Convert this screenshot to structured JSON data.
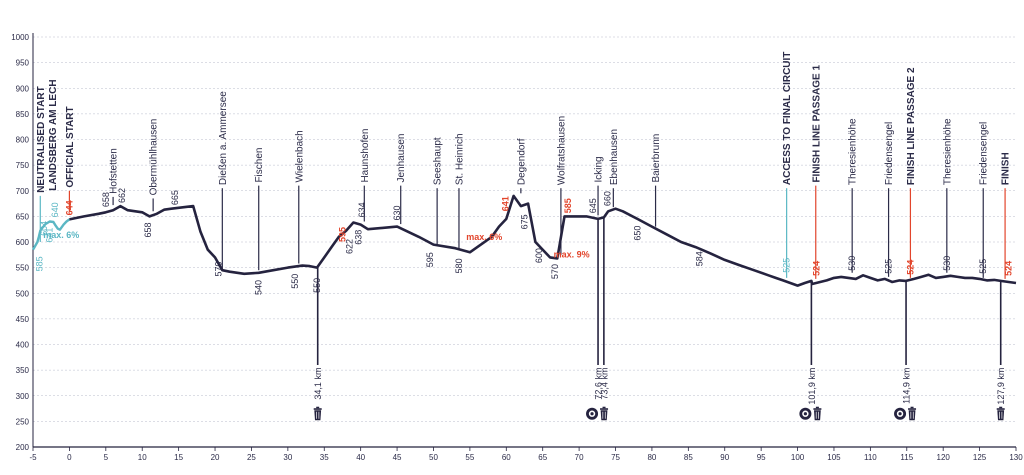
{
  "colors": {
    "profile": "#25233f",
    "teal": "#5bb7c4",
    "red": "#e2452c",
    "dark": "#2b2b48",
    "grid": "#b9bccb",
    "axis": "#25233f"
  },
  "icons": {
    "feed": "feed-zone-icon",
    "bin": "waste-bin-icon"
  },
  "chart_data": {
    "type": "area",
    "title": "",
    "xlabel": "",
    "ylabel": "",
    "xlim": [
      -5,
      130
    ],
    "ylim": [
      200,
      1000
    ],
    "x_ticks": [
      "-5",
      "0",
      "5",
      "10",
      "15",
      "20",
      "25",
      "30",
      "35",
      "40",
      "45",
      "50",
      "55",
      "60",
      "65",
      "70",
      "75",
      "80",
      "85",
      "90",
      "95",
      "100",
      "105",
      "110",
      "115",
      "120",
      "125",
      "130"
    ],
    "y_ticks": [
      "200",
      "250",
      "300",
      "350",
      "400",
      "450",
      "500",
      "550",
      "600",
      "650",
      "700",
      "750",
      "800",
      "850",
      "900",
      "950",
      "1000"
    ],
    "neutralised_profile": {
      "x": [
        -5,
        -4.8,
        -4.4,
        -4.2,
        -4.0,
        -3.7,
        -3.3,
        -2.7,
        -2.2,
        -1.9,
        -1.6,
        -1.3,
        -0.8,
        -0.4,
        0
      ],
      "y": [
        585,
        590,
        600,
        610,
        622,
        628,
        635,
        640,
        639,
        632,
        626,
        624,
        634,
        640,
        644
      ]
    },
    "profile": {
      "x": [
        0,
        2,
        4,
        5,
        6,
        7,
        8,
        10,
        11,
        12,
        13,
        14,
        17,
        18,
        19,
        20,
        21,
        22,
        24,
        26,
        28,
        30,
        32,
        33,
        34,
        35,
        36,
        37,
        38,
        39,
        40,
        41,
        45,
        48,
        50,
        53,
        55,
        58,
        59,
        60,
        61,
        62,
        63,
        64,
        66,
        67,
        68,
        71,
        72.6,
        73.4,
        74,
        75,
        76,
        78,
        80,
        82,
        84,
        86,
        88,
        90,
        92,
        94,
        96,
        97,
        98,
        99,
        100,
        101,
        101.9,
        102,
        104,
        105,
        106,
        107,
        108,
        109,
        110,
        111,
        112,
        113,
        114,
        114.9,
        116,
        117,
        118,
        119,
        120,
        121,
        122,
        123,
        124,
        125,
        126,
        127,
        127.9,
        129,
        130
      ],
      "y": [
        644,
        650,
        655,
        658,
        662,
        670,
        662,
        658,
        650,
        655,
        663,
        665,
        670,
        620,
        585,
        570,
        545,
        542,
        538,
        540,
        545,
        550,
        554,
        553,
        550,
        570,
        590,
        610,
        622,
        638,
        634,
        625,
        630,
        610,
        595,
        588,
        580,
        610,
        630,
        645,
        690,
        670,
        675,
        600,
        570,
        568,
        650,
        650,
        645,
        648,
        660,
        665,
        660,
        645,
        630,
        615,
        600,
        590,
        578,
        565,
        555,
        545,
        535,
        530,
        525,
        520,
        515,
        520,
        524,
        518,
        525,
        530,
        532,
        530,
        528,
        535,
        530,
        525,
        528,
        522,
        525,
        524,
        528,
        532,
        536,
        530,
        532,
        534,
        532,
        530,
        530,
        528,
        525,
        526,
        524,
        522,
        520
      ]
    },
    "gradient_labels": [
      {
        "text": "max. 6%",
        "x": -3.6,
        "y": 608,
        "color": "teal"
      },
      {
        "text": "max. 6%",
        "x": 54.5,
        "y": 604,
        "color": "red"
      },
      {
        "text": "max. 9%",
        "x": 66.5,
        "y": 570,
        "color": "red"
      }
    ],
    "places": [
      {
        "name": "NEUTRALISED START",
        "x": -4.0,
        "color": "teal",
        "line_from": 690,
        "line_to": 600
      },
      {
        "name": "LANDSBERG AM LECH",
        "x": -2.3,
        "color": "teal",
        "line_from": 0,
        "line_to": 0
      },
      {
        "name": "OFFICIAL START",
        "x": 0,
        "color": "red",
        "line_from": 700,
        "line_to": 660
      },
      {
        "name": "Hofstetten",
        "x": 6,
        "color": "dark",
        "line_from": 688,
        "line_to": 672
      },
      {
        "name": "Obermühlhausen",
        "x": 11.5,
        "color": "dark",
        "line_from": 685,
        "line_to": 660
      },
      {
        "name": "Dießen a. Ammersee",
        "x": 21,
        "color": "dark",
        "line_from": 705,
        "line_to": 548
      },
      {
        "name": "Fischen",
        "x": 26,
        "color": "dark",
        "line_from": 710,
        "line_to": 545
      },
      {
        "name": "Wielenbach",
        "x": 31.5,
        "color": "dark",
        "line_from": 710,
        "line_to": 558
      },
      {
        "name": "Haunshofen",
        "x": 40.5,
        "color": "dark",
        "line_from": 710,
        "line_to": 640
      },
      {
        "name": "Jenhausen",
        "x": 45.5,
        "color": "dark",
        "line_from": 710,
        "line_to": 635
      },
      {
        "name": "Seeshaupt",
        "x": 50.5,
        "color": "dark",
        "line_from": 705,
        "line_to": 595
      },
      {
        "name": "St. Heinrich",
        "x": 53.5,
        "color": "dark",
        "line_from": 705,
        "line_to": 585
      },
      {
        "name": "Degendorf",
        "x": 62,
        "color": "dark",
        "line_from": 705,
        "line_to": 695
      },
      {
        "name": "Wolfratshausen",
        "x": 67.5,
        "color": "dark",
        "line_from": 705,
        "line_to": 575
      },
      {
        "name": "Icking",
        "x": 72.6,
        "color": "dark",
        "line_from": 710,
        "line_to": 652
      },
      {
        "name": "Ebenhausen",
        "x": 74.7,
        "color": "dark",
        "line_from": 705,
        "line_to": 668
      },
      {
        "name": "Baierbrunn",
        "x": 80.5,
        "color": "dark",
        "line_from": 710,
        "line_to": 630
      },
      {
        "name": "ACCESS TO FINAL CIRCUIT",
        "x": 98.5,
        "color": "teal",
        "line_from": 705,
        "line_to": 530
      },
      {
        "name": "FINISH LINE PASSAGE 1",
        "x": 102.5,
        "color": "red",
        "line_from": 710,
        "line_to": 528
      },
      {
        "name": "Theresienhöhe",
        "x": 107.5,
        "color": "dark",
        "line_from": 705,
        "line_to": 540
      },
      {
        "name": "Friedensengel",
        "x": 112.5,
        "color": "dark",
        "line_from": 705,
        "line_to": 532
      },
      {
        "name": "FINISH LINE PASSAGE 2",
        "x": 115.5,
        "color": "red",
        "line_from": 705,
        "line_to": 530
      },
      {
        "name": "Theresienhöhe",
        "x": 120.5,
        "color": "dark",
        "line_from": 705,
        "line_to": 540
      },
      {
        "name": "Friedensengel",
        "x": 125.5,
        "color": "dark",
        "line_from": 705,
        "line_to": 530
      },
      {
        "name": "FINISH",
        "x": 128.5,
        "color": "red",
        "line_from": 705,
        "line_to": 528
      }
    ],
    "elevations": [
      {
        "text": "585",
        "x": -4.1,
        "y": 572,
        "color": "teal",
        "dir": "down"
      },
      {
        "text": "604",
        "x": -3.5,
        "y": 612,
        "color": "teal",
        "dir": "up"
      },
      {
        "text": "641",
        "x": -2.7,
        "y": 628,
        "color": "teal",
        "dir": "down"
      },
      {
        "text": "640",
        "x": -2.0,
        "y": 648,
        "color": "teal",
        "dir": "up"
      },
      {
        "text": "644",
        "x": 0,
        "y": 652,
        "color": "red",
        "dir": "up"
      },
      {
        "text": "658",
        "x": 5,
        "y": 668,
        "color": "dark",
        "dir": "up"
      },
      {
        "text": "662",
        "x": 7.2,
        "y": 676,
        "color": "dark",
        "dir": "up"
      },
      {
        "text": "658",
        "x": 10.8,
        "y": 638,
        "color": "dark",
        "dir": "down"
      },
      {
        "text": "665",
        "x": 14.5,
        "y": 672,
        "color": "dark",
        "dir": "up"
      },
      {
        "text": "570",
        "x": 20.5,
        "y": 562,
        "color": "dark",
        "dir": "down"
      },
      {
        "text": "540",
        "x": 26,
        "y": 526,
        "color": "dark",
        "dir": "down"
      },
      {
        "text": "550",
        "x": 31,
        "y": 538,
        "color": "dark",
        "dir": "down"
      },
      {
        "text": "550",
        "x": 34,
        "y": 530,
        "color": "dark",
        "dir": "down"
      },
      {
        "text": "595",
        "x": 37.5,
        "y": 600,
        "color": "red",
        "dir": "up"
      },
      {
        "text": "622",
        "x": 38.5,
        "y": 606,
        "color": "dark",
        "dir": "down"
      },
      {
        "text": "638",
        "x": 39.7,
        "y": 624,
        "color": "dark",
        "dir": "down"
      },
      {
        "text": "634",
        "x": 40.2,
        "y": 648,
        "color": "dark",
        "dir": "up"
      },
      {
        "text": "630",
        "x": 45,
        "y": 642,
        "color": "dark",
        "dir": "up"
      },
      {
        "text": "595",
        "x": 49.5,
        "y": 580,
        "color": "dark",
        "dir": "down"
      },
      {
        "text": "580",
        "x": 53.5,
        "y": 568,
        "color": "dark",
        "dir": "down"
      },
      {
        "text": "641",
        "x": 59.9,
        "y": 660,
        "color": "red",
        "dir": "up"
      },
      {
        "text": "675",
        "x": 62.5,
        "y": 654,
        "color": "dark",
        "dir": "down"
      },
      {
        "text": "600",
        "x": 64.5,
        "y": 588,
        "color": "dark",
        "dir": "down"
      },
      {
        "text": "570",
        "x": 66.7,
        "y": 557,
        "color": "dark",
        "dir": "down"
      },
      {
        "text": "585",
        "x": 68.5,
        "y": 656,
        "color": "red",
        "dir": "up"
      },
      {
        "text": "645",
        "x": 71.9,
        "y": 656,
        "color": "dark",
        "dir": "up"
      },
      {
        "text": "660",
        "x": 73.9,
        "y": 670,
        "color": "dark",
        "dir": "up"
      },
      {
        "text": "650",
        "x": 78,
        "y": 632,
        "color": "dark",
        "dir": "down"
      },
      {
        "text": "584",
        "x": 86.5,
        "y": 582,
        "color": "dark",
        "dir": "down"
      },
      {
        "text": "525",
        "x": 98.5,
        "y": 540,
        "color": "teal",
        "dir": "up"
      },
      {
        "text": "524",
        "x": 102.6,
        "y": 534,
        "color": "red",
        "dir": "up"
      },
      {
        "text": "530",
        "x": 107.5,
        "y": 544,
        "color": "dark",
        "dir": "up"
      },
      {
        "text": "525",
        "x": 112.5,
        "y": 538,
        "color": "dark",
        "dir": "up"
      },
      {
        "text": "524",
        "x": 115.5,
        "y": 536,
        "color": "red",
        "dir": "up"
      },
      {
        "text": "530",
        "x": 120.5,
        "y": 544,
        "color": "dark",
        "dir": "up"
      },
      {
        "text": "525",
        "x": 125.5,
        "y": 538,
        "color": "dark",
        "dir": "up"
      },
      {
        "text": "524",
        "x": 129,
        "y": 534,
        "color": "red",
        "dir": "up"
      }
    ],
    "km_markers": [
      {
        "text": "34,1 km",
        "x": 34.1,
        "y_top": 550,
        "icons": [
          "bin"
        ]
      },
      {
        "text": "72,6 km",
        "x": 72.6,
        "y_top": 645,
        "icons": [
          "feed",
          "bin"
        ]
      },
      {
        "text": "73,4 km",
        "x": 73.4,
        "y_top": 648,
        "icons": []
      },
      {
        "text": "101,9 km",
        "x": 101.9,
        "y_top": 524,
        "icons": [
          "feed",
          "bin"
        ]
      },
      {
        "text": "114,9 km",
        "x": 114.9,
        "y_top": 524,
        "icons": [
          "feed",
          "bin"
        ]
      },
      {
        "text": "127,9 km",
        "x": 127.9,
        "y_top": 524,
        "icons": [
          "bin"
        ]
      }
    ]
  }
}
